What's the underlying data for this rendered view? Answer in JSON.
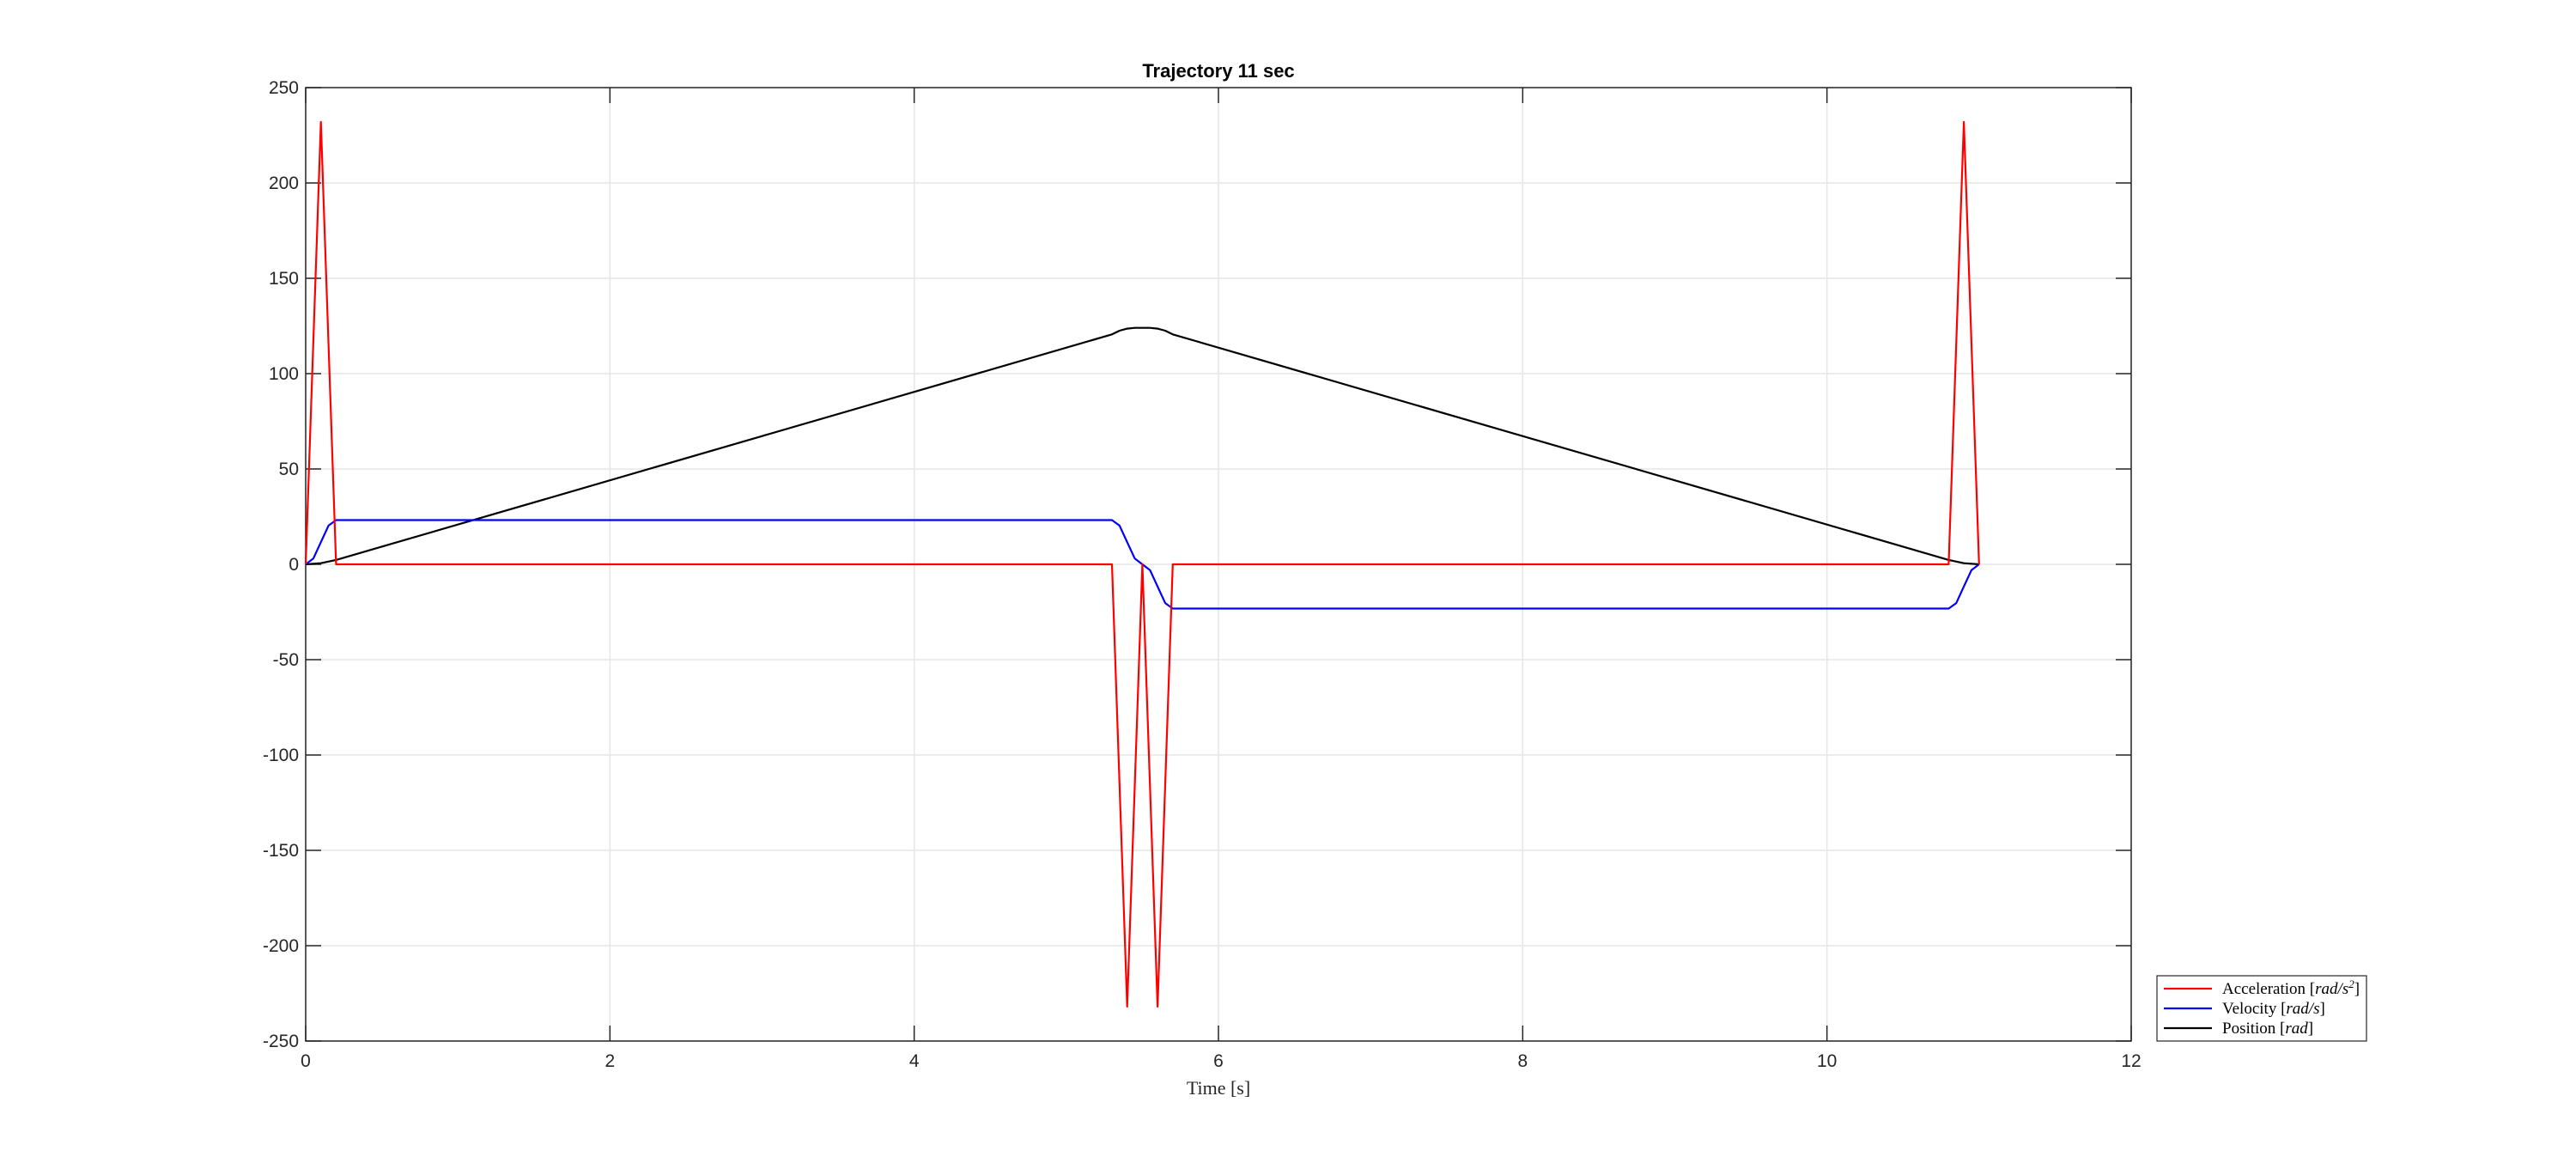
{
  "chart_data": {
    "type": "line",
    "title": "Trajectory 11 sec",
    "xlabel": "Time [s]",
    "ylabel": "",
    "xlim": [
      0,
      12
    ],
    "ylim": [
      -250,
      250
    ],
    "xticks": [
      0,
      2,
      4,
      6,
      8,
      10,
      12
    ],
    "yticks": [
      -250,
      -200,
      -150,
      -100,
      -50,
      0,
      50,
      100,
      150,
      200,
      250
    ],
    "grid": true,
    "legend_position": "bottom-right outside",
    "series": [
      {
        "name": "Acceleration [rad/s²]",
        "color": "#ff0000",
        "points": [
          [
            0,
            0
          ],
          [
            0.1,
            232
          ],
          [
            0.2,
            0
          ],
          [
            5.3,
            0
          ],
          [
            5.4,
            -232
          ],
          [
            5.5,
            0
          ],
          [
            5.6,
            -232
          ],
          [
            5.7,
            0
          ],
          [
            10.8,
            0
          ],
          [
            10.9,
            232
          ],
          [
            11.0,
            0
          ]
        ]
      },
      {
        "name": "Velocity [rad/s]",
        "color": "#0000ff",
        "points": [
          [
            0,
            0
          ],
          [
            0.05,
            3
          ],
          [
            0.1,
            11.6
          ],
          [
            0.15,
            20.3
          ],
          [
            0.2,
            23.2
          ],
          [
            5.3,
            23.2
          ],
          [
            5.35,
            20.3
          ],
          [
            5.4,
            11.6
          ],
          [
            5.45,
            3
          ],
          [
            5.5,
            0
          ],
          [
            5.55,
            -3
          ],
          [
            5.6,
            -11.6
          ],
          [
            5.65,
            -20.3
          ],
          [
            5.7,
            -23.2
          ],
          [
            10.8,
            -23.2
          ],
          [
            10.85,
            -20.3
          ],
          [
            10.9,
            -11.6
          ],
          [
            10.95,
            -3
          ],
          [
            11.0,
            0
          ]
        ]
      },
      {
        "name": "Position [rad]",
        "color": "#000000",
        "points": [
          [
            0,
            0
          ],
          [
            0.1,
            0.6
          ],
          [
            0.2,
            2.3
          ],
          [
            5.3,
            120.6
          ],
          [
            5.35,
            122.5
          ],
          [
            5.4,
            123.6
          ],
          [
            5.45,
            124
          ],
          [
            5.55,
            124
          ],
          [
            5.6,
            123.6
          ],
          [
            5.65,
            122.5
          ],
          [
            5.7,
            120.6
          ],
          [
            10.8,
            2.3
          ],
          [
            10.9,
            0.6
          ],
          [
            11.0,
            0
          ]
        ]
      }
    ],
    "legend": [
      {
        "text": "Acceleration [",
        "var": "rad/s",
        "sup": "2",
        "tail": "]"
      },
      {
        "text": "Velocity [",
        "var": "rad/s",
        "sup": "",
        "tail": "]"
      },
      {
        "text": "Position [",
        "var": "rad",
        "sup": "",
        "tail": "]"
      }
    ]
  }
}
